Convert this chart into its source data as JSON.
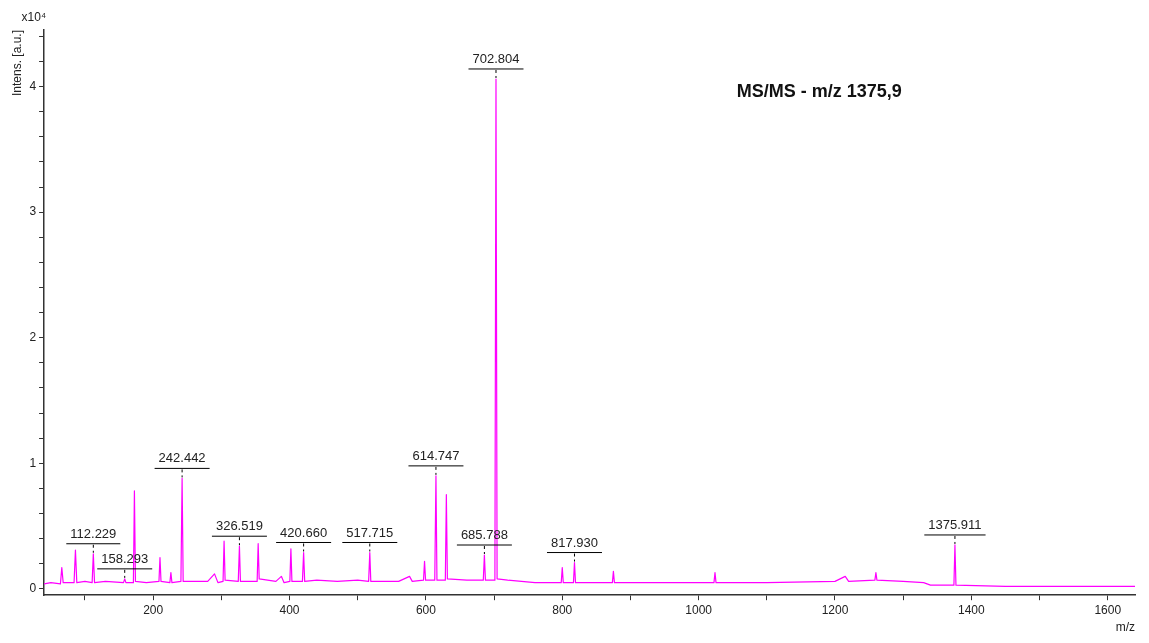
{
  "chart_data": {
    "type": "line",
    "title": "MS/MS - m/z 1375,9",
    "xlabel": "m/z",
    "ylabel": "Intens. [a.u.]",
    "annotations": [
      "x10⁴",
      {
        "text": "112.229",
        "x": 112.229,
        "y": 0.28
      },
      {
        "text": "158.293",
        "x": 158.293,
        "y": 0.08
      },
      {
        "text": "242.442",
        "x": 242.442,
        "y": 0.88
      },
      {
        "text": "326.519",
        "x": 326.519,
        "y": 0.34
      },
      {
        "text": "420.660",
        "x": 420.66,
        "y": 0.29
      },
      {
        "text": "517.715",
        "x": 517.715,
        "y": 0.29
      },
      {
        "text": "614.747",
        "x": 614.747,
        "y": 0.9
      },
      {
        "text": "685.788",
        "x": 685.788,
        "y": 0.27
      },
      {
        "text": "702.804",
        "x": 702.804,
        "y": 4.06
      },
      {
        "text": "817.930",
        "x": 817.93,
        "y": 0.21
      },
      {
        "text": "1375.911",
        "x": 1375.911,
        "y": 0.35
      }
    ],
    "x": [
      40,
      50,
      64,
      66,
      68,
      84,
      86,
      88,
      100,
      110.5,
      112.229,
      114,
      130,
      156.5,
      158.293,
      160,
      171,
      172.5,
      174,
      190,
      208.5,
      210,
      211.5,
      224.5,
      226,
      227.5,
      240.7,
      242.442,
      244,
      280,
      290,
      295,
      302.5,
      304,
      305.5,
      324.8,
      326.519,
      328,
      352.5,
      354,
      355.5,
      380,
      388,
      392,
      400.5,
      402,
      403.5,
      418.9,
      420.66,
      422.2,
      440,
      470,
      500,
      516,
      517.715,
      519.2,
      560,
      576,
      580,
      596.5,
      598,
      599.5,
      613,
      614.747,
      616.2,
      628.5,
      630,
      631.5,
      660,
      684.2,
      685.788,
      687.3,
      701.2,
      702.804,
      704.4,
      720,
      760,
      798.5,
      800,
      801.5,
      816.4,
      817.93,
      819.4,
      873.5,
      875,
      876.5,
      950,
      1022.5,
      1024,
      1025.5,
      1100,
      1200,
      1215,
      1220,
      1258.5,
      1260,
      1261.5,
      1300,
      1330,
      1340,
      1374.4,
      1375.911,
      1377.4,
      1450,
      1550,
      1640
    ],
    "series": [
      {
        "color": "#ff00ff",
        "values": [
          0.04,
          0.05,
          0.04,
          0.17,
          0.05,
          0.05,
          0.31,
          0.05,
          0.06,
          0.05,
          0.28,
          0.05,
          0.06,
          0.05,
          0.08,
          0.05,
          0.05,
          0.78,
          0.06,
          0.05,
          0.06,
          0.25,
          0.06,
          0.05,
          0.13,
          0.05,
          0.06,
          0.88,
          0.06,
          0.06,
          0.12,
          0.05,
          0.06,
          0.38,
          0.07,
          0.06,
          0.34,
          0.06,
          0.06,
          0.36,
          0.08,
          0.06,
          0.1,
          0.05,
          0.06,
          0.32,
          0.06,
          0.06,
          0.29,
          0.06,
          0.07,
          0.06,
          0.07,
          0.06,
          0.29,
          0.06,
          0.06,
          0.1,
          0.06,
          0.07,
          0.22,
          0.07,
          0.07,
          0.9,
          0.07,
          0.07,
          0.75,
          0.08,
          0.07,
          0.07,
          0.27,
          0.07,
          0.07,
          4.06,
          0.08,
          0.07,
          0.05,
          0.05,
          0.17,
          0.05,
          0.05,
          0.21,
          0.05,
          0.05,
          0.14,
          0.05,
          0.05,
          0.05,
          0.13,
          0.05,
          0.05,
          0.06,
          0.1,
          0.06,
          0.07,
          0.13,
          0.07,
          0.06,
          0.05,
          0.03,
          0.03,
          0.35,
          0.03,
          0.02,
          0.02,
          0.02
        ]
      }
    ],
    "xlim": [
      40,
      1640
    ],
    "xticks": [
      {
        "value": 100,
        "label": null
      },
      200,
      {
        "value": 300,
        "label": null
      },
      400,
      {
        "value": 500,
        "label": null
      },
      600,
      {
        "value": 700,
        "label": null
      },
      800,
      {
        "value": 900,
        "label": null
      },
      1000,
      {
        "value": 1100,
        "label": null
      },
      1200,
      {
        "value": 1300,
        "label": null
      },
      1400,
      {
        "value": 1500,
        "label": null
      },
      1600
    ],
    "ylim": [
      -0.05,
      4.45
    ],
    "yticks": [
      0,
      {
        "value": 0.2,
        "label": null
      },
      {
        "value": 0.4,
        "label": null
      },
      {
        "value": 0.6,
        "label": null
      },
      {
        "value": 0.8,
        "label": null
      },
      1,
      {
        "value": 1.2,
        "label": null
      },
      {
        "value": 1.4,
        "label": null
      },
      {
        "value": 1.6,
        "label": null
      },
      {
        "value": 1.8,
        "label": null
      },
      2,
      {
        "value": 2.2,
        "label": null
      },
      {
        "value": 2.4,
        "label": null
      },
      {
        "value": 2.6,
        "label": null
      },
      {
        "value": 2.8,
        "label": null
      },
      3,
      {
        "value": 3.2,
        "label": null
      },
      {
        "value": 3.4,
        "label": null
      },
      {
        "value": 3.6,
        "label": null
      },
      {
        "value": 3.8,
        "label": null
      },
      4,
      {
        "value": 4.2,
        "label": null
      },
      {
        "value": 4.4,
        "label": null
      }
    ],
    "grid": false,
    "legend": false,
    "marker": "none",
    "line_style": "solid"
  }
}
